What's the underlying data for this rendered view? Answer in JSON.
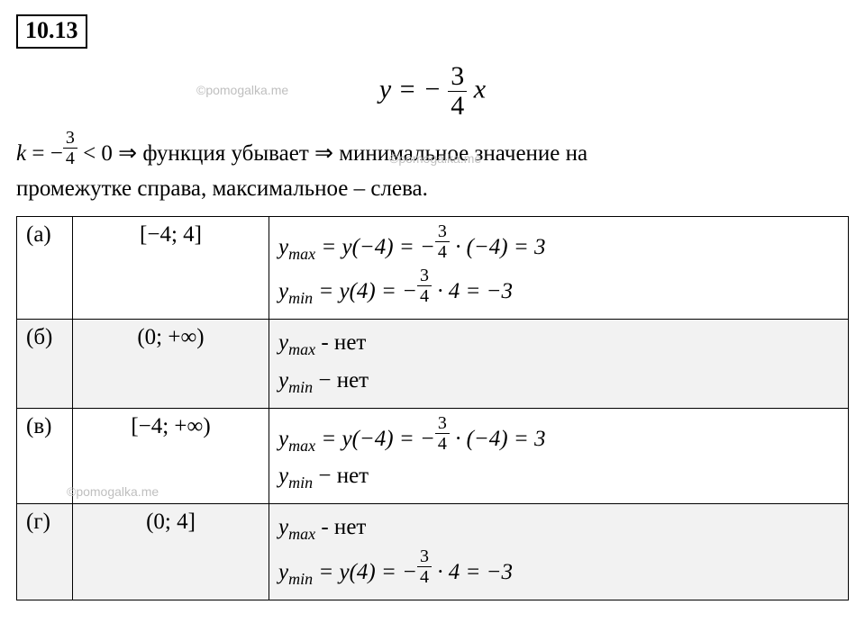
{
  "problem_number": "10.13",
  "main_equation": {
    "lhs": "y",
    "eq": "=",
    "neg": "−",
    "frac_num": "3",
    "frac_den": "4",
    "rhs_var": "x"
  },
  "explanation": {
    "k_label": "k",
    "eq1": " = −",
    "frac_num": "3",
    "frac_den": "4",
    "lt": " < 0 ⇒ ",
    "text1": "функция убывает ⇒ минимальное значение на",
    "text2": "промежутке справа, максимальное – слева."
  },
  "watermark": "©pomogalka.me",
  "rows": [
    {
      "label": "(а)",
      "interval": "[−4; 4]",
      "shaded": false,
      "lines": [
        {
          "prefix": "y",
          "sub": "max",
          "mid": " = y(−4) = −",
          "frac_num": "3",
          "frac_den": "4",
          "tail": " · (−4) = 3"
        },
        {
          "prefix": "y",
          "sub": "min",
          "mid": " = y(4) = −",
          "frac_num": "3",
          "frac_den": "4",
          "tail": " · 4 = −3"
        }
      ]
    },
    {
      "label": "(б)",
      "interval": "(0; +∞)",
      "shaded": true,
      "lines": [
        {
          "prefix": "y",
          "sub": "max",
          "plain": " - нет"
        },
        {
          "prefix": "y",
          "sub": "min",
          "plain": " − нет"
        }
      ]
    },
    {
      "label": "(в)",
      "interval": "[−4; +∞)",
      "shaded": false,
      "lines": [
        {
          "prefix": "y",
          "sub": "max",
          "mid": " = y(−4) = −",
          "frac_num": "3",
          "frac_den": "4",
          "tail": " · (−4) = 3"
        },
        {
          "prefix": "y",
          "sub": "min",
          "plain": " − нет"
        }
      ]
    },
    {
      "label": "(г)",
      "interval": "(0; 4]",
      "shaded": true,
      "lines": [
        {
          "prefix": "y",
          "sub": "max",
          "plain": " - нет"
        },
        {
          "prefix": "y",
          "sub": "min",
          "mid": " = y(4) = −",
          "frac_num": "3",
          "frac_den": "4",
          "tail": " · 4 = −3"
        }
      ]
    }
  ],
  "colors": {
    "background": "#ffffff",
    "text": "#000000",
    "shaded_row": "#f2f2f2",
    "watermark": "#bfbfbf",
    "border": "#000000"
  }
}
